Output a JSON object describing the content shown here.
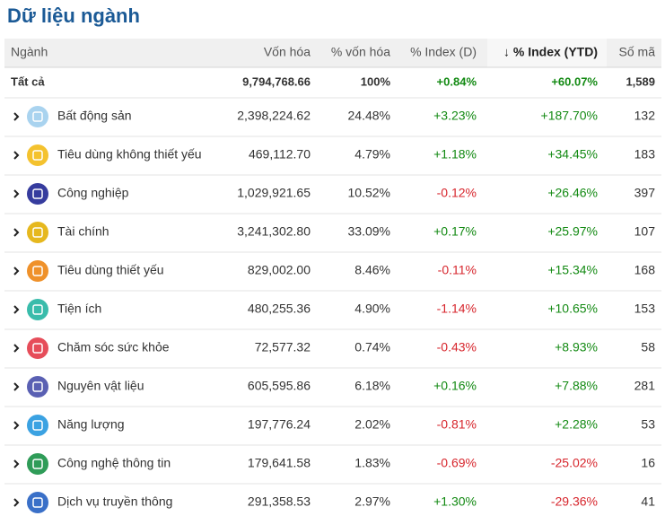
{
  "header": {
    "title": "Dữ liệu ngành"
  },
  "table": {
    "headers": [
      "Ngành",
      "Vốn hóa",
      "% vốn hóa",
      "% Index (D)",
      "↓ % Index (YTD)",
      "Số mã"
    ],
    "total": [
      "Tất cả",
      "9,794,768.66",
      "100%",
      "+0.84%",
      "+60.07%",
      "1,589"
    ],
    "rows": [
      [
        "Bất động sản",
        "2,398,224.62",
        "24.48%",
        "+3.23%",
        "+187.70%",
        "132"
      ],
      [
        "Tiêu dùng không thiết yếu",
        "469,112.70",
        "4.79%",
        "+1.18%",
        "+34.45%",
        "183"
      ],
      [
        "Công nghiệp",
        "1,029,921.65",
        "10.52%",
        "-0.12%",
        "+26.46%",
        "397"
      ],
      [
        "Tài chính",
        "3,241,302.80",
        "33.09%",
        "+0.17%",
        "+25.97%",
        "107"
      ],
      [
        "Tiêu dùng thiết yếu",
        "829,002.00",
        "8.46%",
        "-0.11%",
        "+15.34%",
        "168"
      ],
      [
        "Tiện ích",
        "480,255.36",
        "4.90%",
        "-1.14%",
        "+10.65%",
        "153"
      ],
      [
        "Chăm sóc sức khỏe",
        "72,577.32",
        "0.74%",
        "-0.43%",
        "+8.93%",
        "58"
      ],
      [
        "Nguyên vật liệu",
        "605,595.86",
        "6.18%",
        "+0.16%",
        "+7.88%",
        "281"
      ],
      [
        "Năng lượng",
        "197,776.24",
        "2.02%",
        "-0.81%",
        "+2.28%",
        "53"
      ],
      [
        "Công nghệ thông tin",
        "179,641.58",
        "1.83%",
        "-0.69%",
        "-25.02%",
        "16"
      ],
      [
        "Dịch vụ truyền thông",
        "291,358.53",
        "2.97%",
        "+1.30%",
        "-29.36%",
        "41"
      ]
    ]
  }
}
